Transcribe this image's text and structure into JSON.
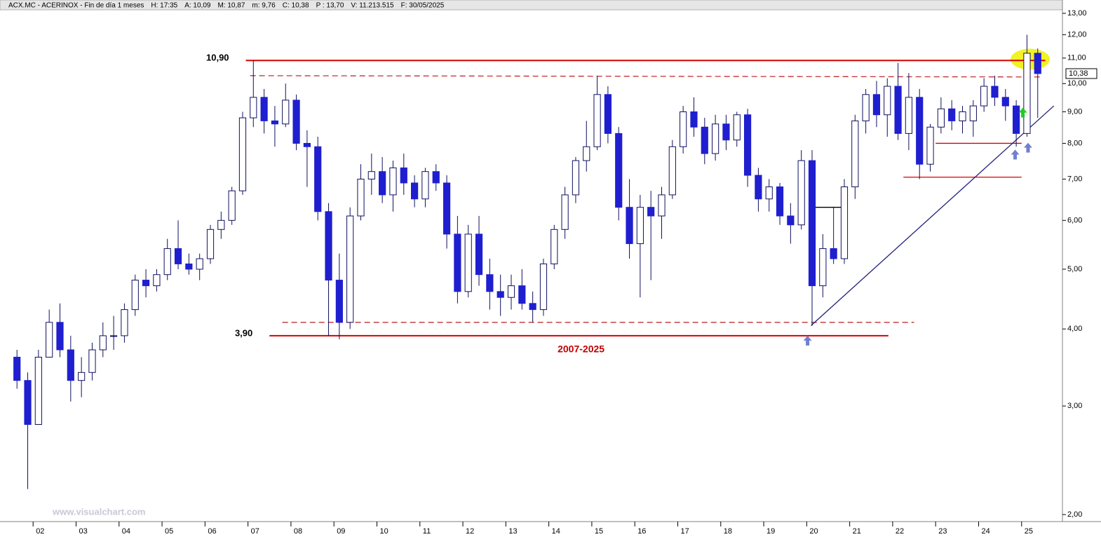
{
  "chart_data": {
    "type": "candlestick",
    "header": [
      {
        "text": "ACX.MC - ACERINOX - Fin de día 1 meses",
        "color": "#000000"
      },
      {
        "text": "H: 17:35",
        "color": "#000000"
      },
      {
        "text": "A: 10,09",
        "color": "#000000"
      },
      {
        "text": "M: 10,87",
        "color": "#000000"
      },
      {
        "text": "m: 9,76",
        "color": "#000000"
      },
      {
        "text": "C: 10,38",
        "color": "#000000"
      },
      {
        "text": "P : 13,70",
        "color": "#d00000"
      },
      {
        "text": "V: 11.213.515",
        "color": "#000000"
      },
      {
        "text": "F: 30/05/2025",
        "color": "#000000"
      }
    ],
    "watermark": "www.visualchart.com",
    "log_scale": true,
    "xlim": [
      2001.23,
      2025.95
    ],
    "ylim": [
      2,
      13
    ],
    "yticks": [
      {
        "value": 2,
        "label": "2,00"
      },
      {
        "value": 3,
        "label": "3,00"
      },
      {
        "value": 4,
        "label": "4,00"
      },
      {
        "value": 5,
        "label": "5,00"
      },
      {
        "value": 6,
        "label": "6,00"
      },
      {
        "value": 7,
        "label": "7,00"
      },
      {
        "value": 8,
        "label": "8,00"
      },
      {
        "value": 9,
        "label": "9,00"
      },
      {
        "value": 10,
        "label": "10,00"
      },
      {
        "value": 11,
        "label": "11,00"
      },
      {
        "value": 12,
        "label": "12,00"
      },
      {
        "value": 13,
        "label": "13,00"
      }
    ],
    "xticks": [
      {
        "value": 2002,
        "label": "02"
      },
      {
        "value": 2003,
        "label": "03"
      },
      {
        "value": 2004,
        "label": "04"
      },
      {
        "value": 2005,
        "label": "05"
      },
      {
        "value": 2006,
        "label": "06"
      },
      {
        "value": 2007,
        "label": "07"
      },
      {
        "value": 2008,
        "label": "08"
      },
      {
        "value": 2009,
        "label": "09"
      },
      {
        "value": 2010,
        "label": "10"
      },
      {
        "value": 2011,
        "label": "11"
      },
      {
        "value": 2012,
        "label": "12"
      },
      {
        "value": 2013,
        "label": "13"
      },
      {
        "value": 2014,
        "label": "14"
      },
      {
        "value": 2015,
        "label": "15"
      },
      {
        "value": 2016,
        "label": "16"
      },
      {
        "value": 2017,
        "label": "17"
      },
      {
        "value": 2018,
        "label": "18"
      },
      {
        "value": 2019,
        "label": "19"
      },
      {
        "value": 2020,
        "label": "20"
      },
      {
        "value": 2021,
        "label": "21"
      },
      {
        "value": 2022,
        "label": "22"
      },
      {
        "value": 2023,
        "label": "23"
      },
      {
        "value": 2024,
        "label": "24"
      },
      {
        "value": 2025,
        "label": "25"
      }
    ],
    "x": [
      2001.625,
      2001.875,
      2002.125,
      2002.375,
      2002.625,
      2002.875,
      2003.125,
      2003.375,
      2003.625,
      2003.875,
      2004.125,
      2004.375,
      2004.625,
      2004.875,
      2005.125,
      2005.375,
      2005.625,
      2005.875,
      2006.125,
      2006.375,
      2006.625,
      2006.875,
      2007.125,
      2007.375,
      2007.625,
      2007.875,
      2008.125,
      2008.375,
      2008.625,
      2008.875,
      2009.125,
      2009.375,
      2009.625,
      2009.875,
      2010.125,
      2010.375,
      2010.625,
      2010.875,
      2011.125,
      2011.375,
      2011.625,
      2011.875,
      2012.125,
      2012.375,
      2012.625,
      2012.875,
      2013.125,
      2013.375,
      2013.625,
      2013.875,
      2014.125,
      2014.375,
      2014.625,
      2014.875,
      2015.125,
      2015.375,
      2015.625,
      2015.875,
      2016.125,
      2016.375,
      2016.625,
      2016.875,
      2017.125,
      2017.375,
      2017.625,
      2017.875,
      2018.125,
      2018.375,
      2018.625,
      2018.875,
      2019.125,
      2019.375,
      2019.625,
      2019.875,
      2020.125,
      2020.375,
      2020.625,
      2020.875,
      2021.125,
      2021.375,
      2021.625,
      2021.875,
      2022.125,
      2022.375,
      2022.625,
      2022.875,
      2023.125,
      2023.375,
      2023.625,
      2023.875,
      2024.125,
      2024.375,
      2024.625,
      2024.875,
      2025.125,
      2025.375
    ],
    "open": [
      3.6,
      3.3,
      2.8,
      3.6,
      4.1,
      3.7,
      3.3,
      3.4,
      3.7,
      3.9,
      3.9,
      4.3,
      4.8,
      4.7,
      4.9,
      5.4,
      5.1,
      5.0,
      5.2,
      5.8,
      6.0,
      6.7,
      8.8,
      9.5,
      8.7,
      8.6,
      9.4,
      8.0,
      7.9,
      6.2,
      4.8,
      4.1,
      6.1,
      7.0,
      7.2,
      6.6,
      7.3,
      6.9,
      6.5,
      7.2,
      6.9,
      5.7,
      4.6,
      5.7,
      4.9,
      4.6,
      4.5,
      4.7,
      4.4,
      4.3,
      5.1,
      5.8,
      6.6,
      7.5,
      7.9,
      9.6,
      8.3,
      6.3,
      5.5,
      6.3,
      6.1,
      6.6,
      7.9,
      9.0,
      8.5,
      7.7,
      8.6,
      8.1,
      8.9,
      7.1,
      6.5,
      6.8,
      6.1,
      5.9,
      7.5,
      4.7,
      5.4,
      5.2,
      6.8,
      8.7,
      9.6,
      8.9,
      9.9,
      8.3,
      9.5,
      7.4,
      8.5,
      9.1,
      8.7,
      8.7,
      9.2,
      9.9,
      9.5,
      9.2,
      8.3,
      11.2
    ],
    "high": [
      3.7,
      3.4,
      3.7,
      4.3,
      4.4,
      3.9,
      3.6,
      3.8,
      4.1,
      4.2,
      4.4,
      4.9,
      5.0,
      5.0,
      5.6,
      6.0,
      5.3,
      5.3,
      5.9,
      6.2,
      6.8,
      9.0,
      10.9,
      9.8,
      9.2,
      10.0,
      9.6,
      8.4,
      8.2,
      6.4,
      5.3,
      6.3,
      7.4,
      7.7,
      7.6,
      7.5,
      7.7,
      7.1,
      7.3,
      7.4,
      7.1,
      6.1,
      5.9,
      6.1,
      5.2,
      4.9,
      4.9,
      5.0,
      4.6,
      5.2,
      5.9,
      6.8,
      7.6,
      8.7,
      10.3,
      9.9,
      8.5,
      7.0,
      6.6,
      6.7,
      6.8,
      8.1,
      9.2,
      9.5,
      8.8,
      8.9,
      8.9,
      9.0,
      9.1,
      7.3,
      7.0,
      6.9,
      6.4,
      7.8,
      7.8,
      5.7,
      6.3,
      7.0,
      8.9,
      9.8,
      10.1,
      10.2,
      10.8,
      10.4,
      9.8,
      8.6,
      9.5,
      9.4,
      9.2,
      9.4,
      10.2,
      10.3,
      9.8,
      9.4,
      12.0,
      11.4
    ],
    "low": [
      3.2,
      2.2,
      2.8,
      3.6,
      3.6,
      3.05,
      3.1,
      3.3,
      3.6,
      3.7,
      3.8,
      4.2,
      4.5,
      4.6,
      4.8,
      5.0,
      4.9,
      4.8,
      5.1,
      5.6,
      5.9,
      6.6,
      8.5,
      8.3,
      7.9,
      8.5,
      7.8,
      6.8,
      6.0,
      3.9,
      3.85,
      4.0,
      6.0,
      6.6,
      6.4,
      6.2,
      6.6,
      6.3,
      6.3,
      6.7,
      5.4,
      4.4,
      4.5,
      4.7,
      4.3,
      4.2,
      4.3,
      4.3,
      4.1,
      4.2,
      5.0,
      5.6,
      6.4,
      7.2,
      7.8,
      8.0,
      6.0,
      5.2,
      4.5,
      4.8,
      5.6,
      6.5,
      7.7,
      8.2,
      7.4,
      7.5,
      7.8,
      7.9,
      6.8,
      6.2,
      6.2,
      5.9,
      5.5,
      5.8,
      4.05,
      4.5,
      5.1,
      5.1,
      6.5,
      8.3,
      8.5,
      8.2,
      8.1,
      7.8,
      7.0,
      7.2,
      8.3,
      8.4,
      8.3,
      8.2,
      9.0,
      9.2,
      8.7,
      7.9,
      8.2,
      8.8
    ],
    "close": [
      3.3,
      2.8,
      3.6,
      4.1,
      3.7,
      3.3,
      3.4,
      3.7,
      3.9,
      3.9,
      4.3,
      4.8,
      4.7,
      4.9,
      5.4,
      5.1,
      5.0,
      5.2,
      5.8,
      6.0,
      6.7,
      8.8,
      9.5,
      8.7,
      8.6,
      9.4,
      8.0,
      7.9,
      6.2,
      4.8,
      4.1,
      6.1,
      7.0,
      7.2,
      6.6,
      7.3,
      6.9,
      6.5,
      7.2,
      6.9,
      5.7,
      4.6,
      5.7,
      4.9,
      4.6,
      4.5,
      4.7,
      4.4,
      4.3,
      5.1,
      5.8,
      6.6,
      7.5,
      7.9,
      9.6,
      8.3,
      6.3,
      5.5,
      6.3,
      6.1,
      6.6,
      7.9,
      9.0,
      8.5,
      7.7,
      8.6,
      8.1,
      8.9,
      7.1,
      6.5,
      6.8,
      6.1,
      5.9,
      7.5,
      4.7,
      5.4,
      5.2,
      6.8,
      8.7,
      9.6,
      8.9,
      9.9,
      8.3,
      9.5,
      7.4,
      8.5,
      9.1,
      8.7,
      9.0,
      9.2,
      9.9,
      9.5,
      9.2,
      8.3,
      11.2,
      10.38
    ],
    "candle_color": "#1f1fd0",
    "last_price": {
      "value": 10.38,
      "label": "10,38"
    },
    "levels": [
      {
        "value": 10.9,
        "label": "10,90",
        "x": [
          2006.95,
          2025.55
        ],
        "color": "#d40000"
      },
      {
        "value": 3.9,
        "label": "3,90",
        "x": [
          2007.5,
          2021.9
        ],
        "color": "#d40000"
      }
    ],
    "period_label": {
      "text": "2007-2025",
      "x": 2014.75,
      "y": 3.7,
      "color": "#c00000"
    },
    "lines": [
      {
        "x": [
          2007.05,
          2025.5
        ],
        "y": [
          10.3,
          10.25
        ],
        "color": "#c03030",
        "dashed": true
      },
      {
        "x": [
          2007.8,
          2022.5
        ],
        "y": [
          4.1,
          4.1
        ],
        "color": "#c03030",
        "dashed": true
      },
      {
        "x": [
          2023.0,
          2025.0
        ],
        "y": [
          8.0,
          8.0
        ],
        "color": "#d40000",
        "dashed": false
      },
      {
        "x": [
          2022.25,
          2025.0
        ],
        "y": [
          7.05,
          7.05
        ],
        "color": "#d40000",
        "dashed": false
      },
      {
        "x": [
          2020.2,
          2020.95
        ],
        "y": [
          6.3,
          6.3
        ],
        "color": "#000000",
        "dashed": false
      },
      {
        "x": [
          2020.1,
          2025.75
        ],
        "y": [
          4.05,
          9.2
        ],
        "color": "#20207a",
        "dashed": false
      }
    ],
    "arrows": [
      {
        "x": 2020.02,
        "y": 3.82,
        "color": "#7080d0"
      },
      {
        "x": 2024.85,
        "y": 7.65,
        "color": "#7080d0"
      },
      {
        "x": 2025.15,
        "y": 7.85,
        "color": "#7080d0"
      },
      {
        "x": 2025.03,
        "y": 8.95,
        "color": "#22cc22"
      }
    ],
    "highlight": {
      "x": 2025.2,
      "y": 10.95,
      "color": "#f0f000"
    }
  }
}
